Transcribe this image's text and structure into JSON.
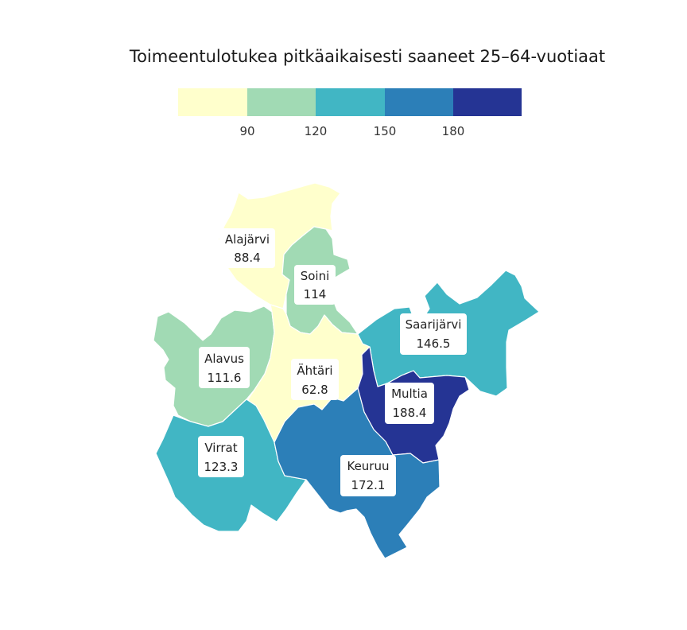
{
  "title": "Toimeentulotukea pitkäaikaisesti saaneet 25–64-vuotiaat",
  "legend": {
    "ticks": [
      "90",
      "120",
      "150",
      "180"
    ],
    "colors": [
      "#ffffcc",
      "#a1dab4",
      "#41b6c4",
      "#2c7fb8",
      "#253494"
    ]
  },
  "regions": [
    {
      "name": "Alajärvi",
      "value": "88.4",
      "color": "#ffffcc"
    },
    {
      "name": "Soini",
      "value": "114",
      "color": "#a1dab4"
    },
    {
      "name": "Alavus",
      "value": "111.6",
      "color": "#a1dab4"
    },
    {
      "name": "Ähtäri",
      "value": "62.8",
      "color": "#ffffcc"
    },
    {
      "name": "Saarijärvi",
      "value": "146.5",
      "color": "#41b6c4"
    },
    {
      "name": "Multia",
      "value": "188.4",
      "color": "#253494"
    },
    {
      "name": "Virrat",
      "value": "123.3",
      "color": "#41b6c4"
    },
    {
      "name": "Keuruu",
      "value": "172.1",
      "color": "#2c7fb8"
    }
  ]
}
